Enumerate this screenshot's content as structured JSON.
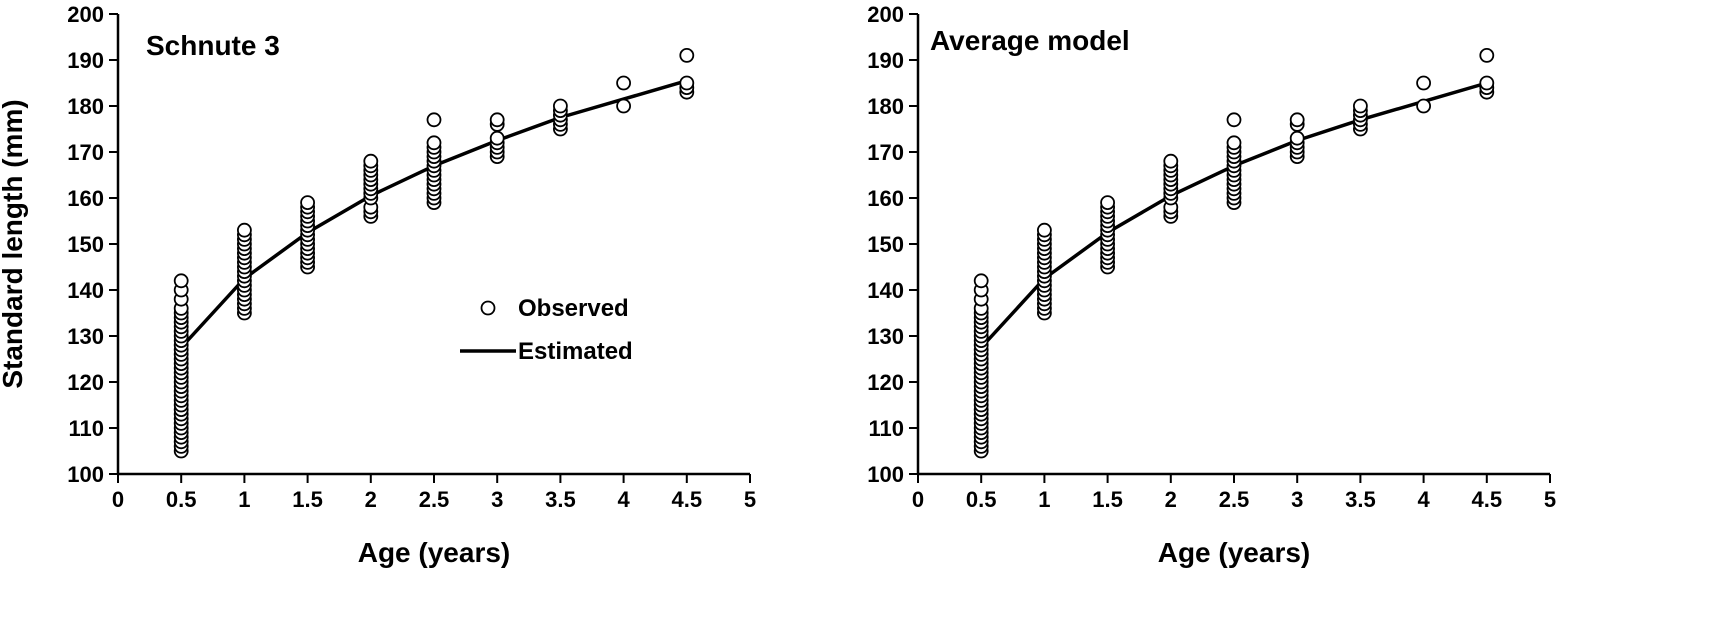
{
  "chart_data": [
    {
      "type": "scatter",
      "title": "Schnute 3",
      "xlabel": "Age (years)",
      "ylabel": "Standard length (mm)",
      "xlim": [
        0,
        5
      ],
      "ylim": [
        100,
        200
      ],
      "xticks": [
        "0",
        "0.5",
        "1",
        "1.5",
        "2",
        "2.5",
        "3",
        "3.5",
        "4",
        "4.5",
        "5"
      ],
      "yticks": [
        "100",
        "110",
        "120",
        "130",
        "140",
        "150",
        "160",
        "170",
        "180",
        "190",
        "200"
      ],
      "legend": {
        "placement": "middle",
        "observed": "Observed",
        "estimated": "Estimated"
      },
      "series": [
        {
          "name": "Observed",
          "kind": "points",
          "groups": [
            {
              "x": 0.5,
              "y": [
                105,
                106,
                107,
                108,
                109,
                110,
                111,
                112,
                113,
                114,
                115,
                116,
                117,
                118,
                119,
                120,
                121,
                122,
                123,
                124,
                125,
                126,
                127,
                128,
                129,
                130,
                131,
                132,
                133,
                134,
                135,
                136,
                138,
                140,
                142
              ]
            },
            {
              "x": 1.0,
              "y": [
                135,
                136,
                137,
                138,
                139,
                140,
                141,
                142,
                143,
                144,
                145,
                146,
                147,
                148,
                149,
                150,
                151,
                152,
                153
              ]
            },
            {
              "x": 1.5,
              "y": [
                145,
                146,
                147,
                148,
                149,
                150,
                151,
                152,
                153,
                154,
                155,
                156,
                157,
                158,
                159
              ]
            },
            {
              "x": 2.0,
              "y": [
                156,
                157,
                158,
                160,
                161,
                162,
                163,
                164,
                165,
                166,
                167,
                168
              ]
            },
            {
              "x": 2.5,
              "y": [
                159,
                160,
                161,
                162,
                163,
                164,
                165,
                166,
                167,
                168,
                169,
                170,
                171,
                172,
                177
              ]
            },
            {
              "x": 3.0,
              "y": [
                169,
                170,
                171,
                172,
                173,
                176,
                177
              ]
            },
            {
              "x": 3.5,
              "y": [
                175,
                176,
                177,
                178,
                179,
                180
              ]
            },
            {
              "x": 4.0,
              "y": [
                180,
                185
              ]
            },
            {
              "x": 4.5,
              "y": [
                183,
                184,
                185,
                191
              ]
            }
          ]
        },
        {
          "name": "Estimated",
          "kind": "line",
          "x": [
            0.5,
            1.0,
            1.5,
            2.0,
            2.5,
            3.0,
            3.5,
            4.0,
            4.5
          ],
          "y": [
            127.5,
            142.5,
            152.5,
            160.5,
            167,
            172.5,
            177.5,
            181.5,
            185.5
          ]
        }
      ]
    },
    {
      "type": "scatter",
      "title": "Average model",
      "xlabel": "Age (years)",
      "ylabel": "",
      "xlim": [
        0,
        5
      ],
      "ylim": [
        100,
        200
      ],
      "xticks": [
        "0",
        "0.5",
        "1",
        "1.5",
        "2",
        "2.5",
        "3",
        "3.5",
        "4",
        "4.5",
        "5"
      ],
      "yticks": [
        "100",
        "110",
        "120",
        "130",
        "140",
        "150",
        "160",
        "170",
        "180",
        "190",
        "200"
      ],
      "series": [
        {
          "name": "Observed",
          "kind": "points",
          "groups": [
            {
              "x": 0.5,
              "y": [
                105,
                106,
                107,
                108,
                109,
                110,
                111,
                112,
                113,
                114,
                115,
                116,
                117,
                118,
                119,
                120,
                121,
                122,
                123,
                124,
                125,
                126,
                127,
                128,
                129,
                130,
                131,
                132,
                133,
                134,
                135,
                136,
                138,
                140,
                142
              ]
            },
            {
              "x": 1.0,
              "y": [
                135,
                136,
                137,
                138,
                139,
                140,
                141,
                142,
                143,
                144,
                145,
                146,
                147,
                148,
                149,
                150,
                151,
                152,
                153
              ]
            },
            {
              "x": 1.5,
              "y": [
                145,
                146,
                147,
                148,
                149,
                150,
                151,
                152,
                153,
                154,
                155,
                156,
                157,
                158,
                159
              ]
            },
            {
              "x": 2.0,
              "y": [
                156,
                157,
                158,
                160,
                161,
                162,
                163,
                164,
                165,
                166,
                167,
                168
              ]
            },
            {
              "x": 2.5,
              "y": [
                159,
                160,
                161,
                162,
                163,
                164,
                165,
                166,
                167,
                168,
                169,
                170,
                171,
                172,
                177
              ]
            },
            {
              "x": 3.0,
              "y": [
                169,
                170,
                171,
                172,
                173,
                176,
                177
              ]
            },
            {
              "x": 3.5,
              "y": [
                175,
                176,
                177,
                178,
                179,
                180
              ]
            },
            {
              "x": 4.0,
              "y": [
                180,
                185
              ]
            },
            {
              "x": 4.5,
              "y": [
                183,
                184,
                185,
                191
              ]
            }
          ]
        },
        {
          "name": "Estimated",
          "kind": "line",
          "x": [
            0.5,
            1.0,
            1.5,
            2.0,
            2.5,
            3.0,
            3.5,
            4.0,
            4.5
          ],
          "y": [
            127.5,
            142.5,
            152.5,
            160.5,
            167,
            172.5,
            177,
            181,
            185
          ]
        }
      ]
    }
  ]
}
